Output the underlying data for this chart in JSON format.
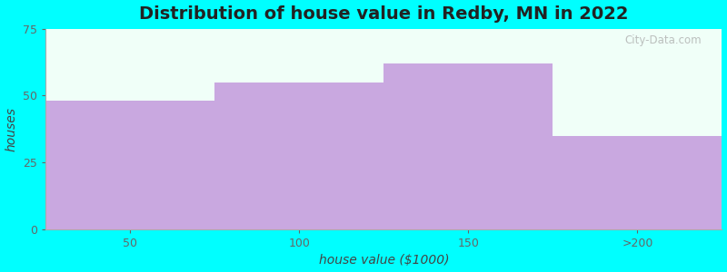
{
  "categories": [
    "50",
    "100",
    "150",
    ">200"
  ],
  "values": [
    48,
    55,
    62,
    35
  ],
  "bar_color": "#C9A8E0",
  "background_color": "#00FFFF",
  "plot_bg_color": "#F0FFF8",
  "title": "Distribution of house value in Redby, MN in 2022",
  "xlabel": "house value ($1000)",
  "ylabel": "houses",
  "ylim": [
    0,
    75
  ],
  "yticks": [
    0,
    25,
    50,
    75
  ],
  "title_fontsize": 14,
  "label_fontsize": 10,
  "tick_fontsize": 9,
  "watermark": "City-Data.com"
}
